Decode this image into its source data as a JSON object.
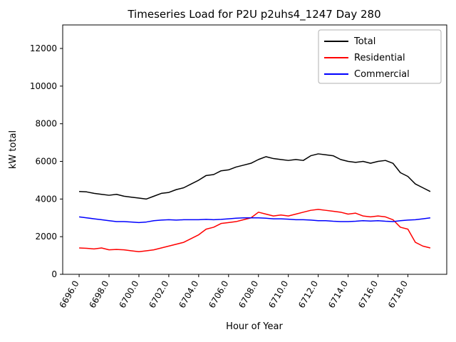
{
  "figure": {
    "title": "Timeseries Load for P2U p2uhs4_1247  Day 280",
    "xlabel": "Hour of Year",
    "ylabel": "kW total"
  },
  "chart_data": {
    "type": "line",
    "title": "Timeseries Load for P2U p2uhs4_1247  Day 280",
    "xlabel": "Hour of Year",
    "ylabel": "kW total",
    "xlim": [
      6694.9,
      6720.6
    ],
    "ylim": [
      0,
      13250
    ],
    "grid": false,
    "legend_position": "upper right",
    "xticks": {
      "values": [
        6696,
        6698,
        6700,
        6702,
        6704,
        6706,
        6708,
        6710,
        6712,
        6714,
        6716,
        6718
      ],
      "labels": [
        "6696.0",
        "6698.0",
        "6700.0",
        "6702.0",
        "6704.0",
        "6706.0",
        "6708.0",
        "6710.0",
        "6712.0",
        "6714.0",
        "6716.0",
        "6718.0"
      ]
    },
    "yticks": {
      "values": [
        0,
        2000,
        4000,
        6000,
        8000,
        10000,
        12000
      ],
      "labels": [
        "0",
        "2000",
        "4000",
        "6000",
        "8000",
        "10000",
        "12000"
      ]
    },
    "x": [
      6696.0,
      6696.5,
      6697.0,
      6697.5,
      6698.0,
      6698.5,
      6699.0,
      6699.5,
      6700.0,
      6700.5,
      6701.0,
      6701.5,
      6702.0,
      6702.5,
      6703.0,
      6703.5,
      6704.0,
      6704.5,
      6705.0,
      6705.5,
      6706.0,
      6706.5,
      6707.0,
      6707.5,
      6708.0,
      6708.5,
      6709.0,
      6709.5,
      6710.0,
      6710.5,
      6711.0,
      6711.5,
      6712.0,
      6712.5,
      6713.0,
      6713.5,
      6714.0,
      6714.5,
      6715.0,
      6715.5,
      6716.0,
      6716.5,
      6717.0,
      6717.5,
      6718.0,
      6718.5,
      6719.0,
      6719.5
    ],
    "series": [
      {
        "name": "Total",
        "color": "#000000",
        "values": [
          4400,
          4380,
          4300,
          4250,
          4200,
          4250,
          4150,
          4100,
          4050,
          4000,
          4150,
          4300,
          4350,
          4500,
          4600,
          4800,
          5000,
          5250,
          5300,
          5500,
          5550,
          5700,
          5800,
          5900,
          6100,
          6250,
          6150,
          6100,
          6050,
          6100,
          6050,
          6300,
          6400,
          6350,
          6300,
          6100,
          6000,
          5950,
          6000,
          5900,
          6000,
          6050,
          5900,
          5400,
          5200,
          4800,
          4600,
          4400
        ]
      },
      {
        "name": "Residential",
        "color": "#ff0000",
        "values": [
          1400,
          1380,
          1350,
          1400,
          1300,
          1320,
          1300,
          1250,
          1200,
          1250,
          1300,
          1400,
          1500,
          1600,
          1700,
          1900,
          2100,
          2400,
          2500,
          2700,
          2750,
          2800,
          2900,
          3000,
          3300,
          3200,
          3100,
          3150,
          3100,
          3200,
          3300,
          3400,
          3450,
          3400,
          3350,
          3300,
          3200,
          3250,
          3100,
          3050,
          3100,
          3050,
          2900,
          2500,
          2400,
          1700,
          1500,
          1400
        ]
      },
      {
        "name": "Commercial",
        "color": "#0000ff",
        "values": [
          3050,
          3000,
          2950,
          2900,
          2850,
          2800,
          2800,
          2780,
          2750,
          2780,
          2850,
          2880,
          2900,
          2880,
          2900,
          2900,
          2900,
          2920,
          2900,
          2920,
          2950,
          2980,
          3000,
          3000,
          3000,
          2980,
          2950,
          2950,
          2930,
          2900,
          2900,
          2880,
          2850,
          2850,
          2820,
          2800,
          2800,
          2820,
          2850,
          2830,
          2850,
          2820,
          2800,
          2850,
          2880,
          2900,
          2950,
          3000
        ]
      }
    ]
  }
}
